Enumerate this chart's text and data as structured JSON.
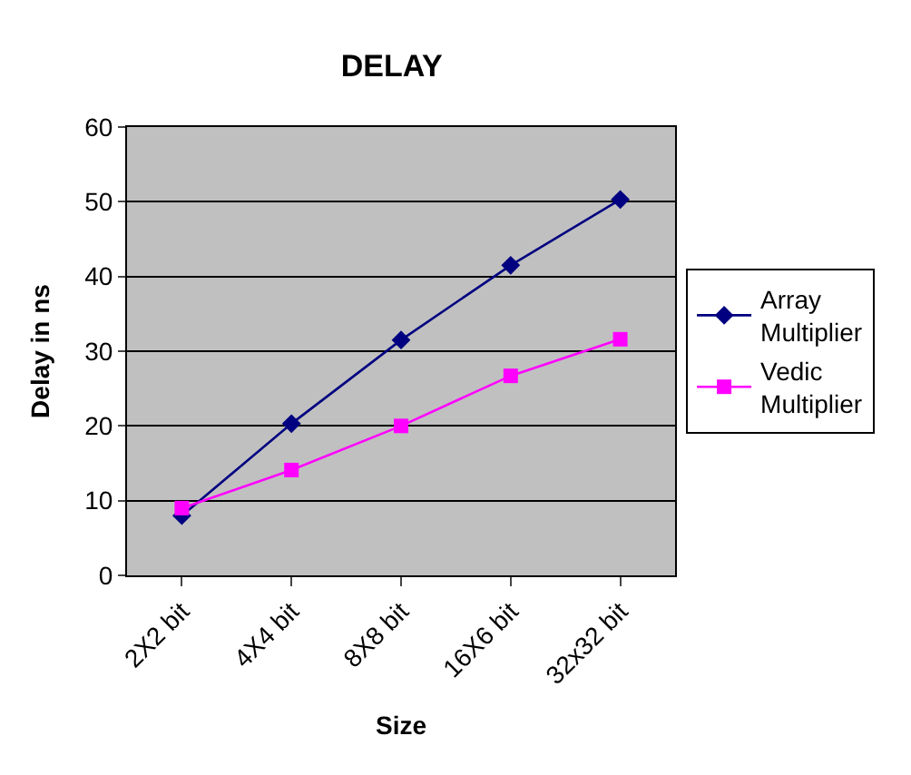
{
  "chart_data": {
    "type": "line",
    "title": "DELAY",
    "xlabel": "Size",
    "ylabel": "Delay in ns",
    "categories": [
      "2X2 bit",
      "4X4 bit",
      "8X8 bit",
      "16X6 bit",
      "32x32 bit"
    ],
    "series": [
      {
        "name": "Array Multiplier",
        "color": "#000080",
        "marker": "diamond",
        "values": [
          8,
          20.3,
          31.5,
          41.5,
          50.3
        ]
      },
      {
        "name": "Vedic Multiplier",
        "color": "#ff00ff",
        "marker": "square",
        "values": [
          9,
          14.1,
          20,
          26.7,
          31.6
        ]
      }
    ],
    "ylim": [
      0,
      60
    ],
    "yticks": [
      0,
      10,
      20,
      30,
      40,
      50,
      60
    ],
    "grid": "y",
    "legend": "right",
    "line_style": "solid"
  }
}
